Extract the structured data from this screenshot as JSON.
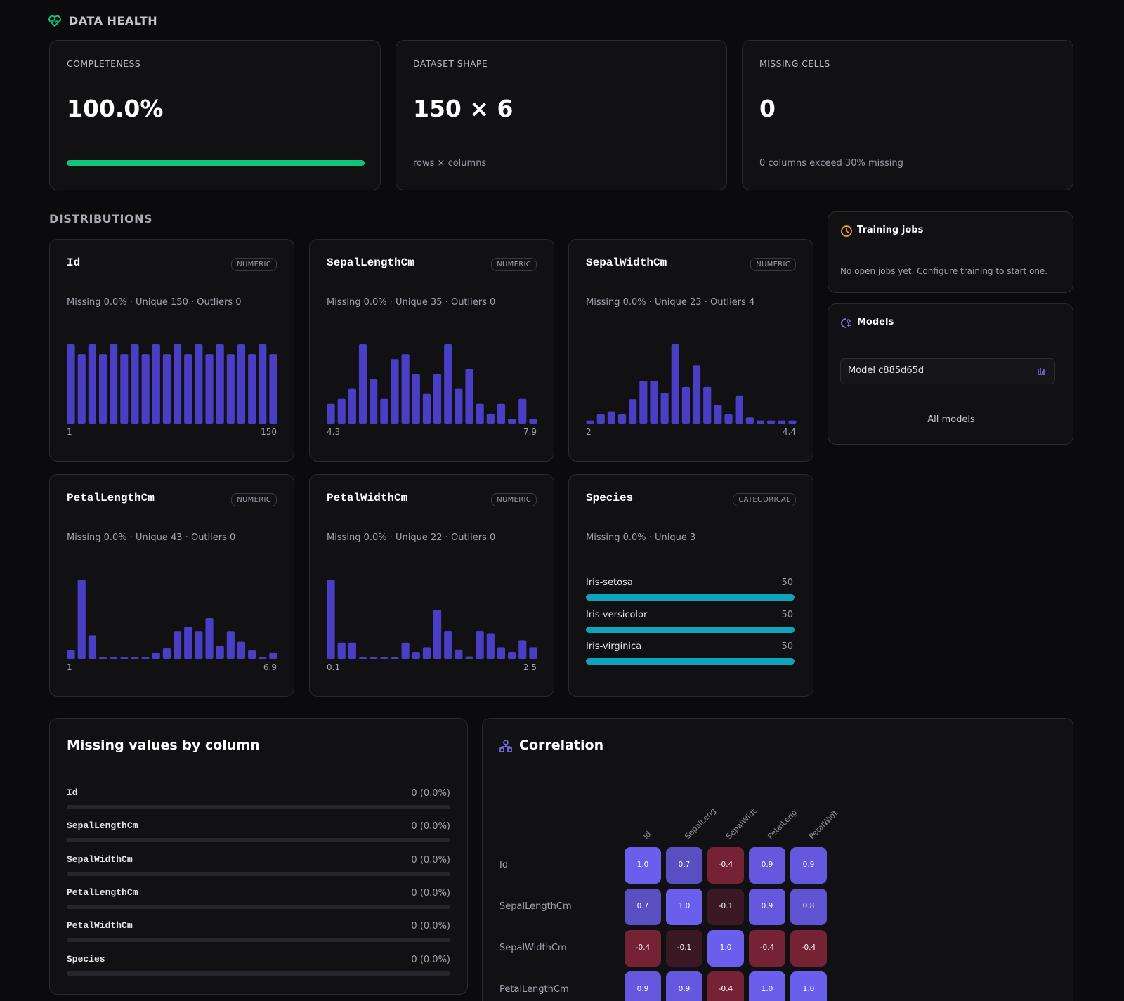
{
  "header": {
    "title": "DATA HEALTH"
  },
  "summary": [
    {
      "label": "COMPLETENESS",
      "value": 100,
      "value_label": "100.0%"
    },
    {
      "label": "DATASET SHAPE",
      "value_label": "150 × 6",
      "note": "rows × columns"
    },
    {
      "label": "MISSING CELLS",
      "value": 0,
      "note": "0 columns exceed 30% missing"
    }
  ],
  "distributions": {
    "title": "DISTRIBUTIONS",
    "columns": [
      {
        "name": "Id",
        "type": "NUMERIC",
        "stats": "Missing 0.0% · Unique 150 · Outliers 0",
        "counts": [
          8,
          7,
          8,
          7,
          8,
          7,
          8,
          7,
          8,
          7,
          8,
          7,
          8,
          7,
          8,
          7,
          8,
          7,
          8,
          7
        ],
        "min_label": "1",
        "max_label": "150"
      },
      {
        "name": "SepalLengthCm",
        "type": "NUMERIC",
        "stats": "Missing 0.0% · Unique 35 · Outliers 0",
        "counts": [
          4,
          5,
          7,
          16,
          9,
          5,
          13,
          14,
          10,
          6,
          10,
          16,
          7,
          11,
          4,
          2,
          4,
          1,
          5,
          1
        ],
        "min_label": "4.3",
        "max_label": "7.9"
      },
      {
        "name": "SepalWidthCm",
        "type": "NUMERIC",
        "stats": "Missing 0.0% · Unique 23 · Outliers 4",
        "counts": [
          1,
          3,
          4,
          3,
          8,
          14,
          14,
          10,
          26,
          12,
          19,
          12,
          6,
          3,
          9,
          2,
          1,
          1,
          1,
          1
        ],
        "min_label": "2",
        "max_label": "4.4"
      },
      {
        "name": "PetalLengthCm",
        "type": "NUMERIC",
        "stats": "Missing 0.0% · Unique 43 · Outliers 0",
        "counts": [
          4,
          37,
          11,
          1,
          0,
          0,
          0,
          1,
          3,
          5,
          13,
          15,
          13,
          19,
          6,
          13,
          8,
          4,
          1,
          3
        ],
        "min_label": "1",
        "max_label": "6.9"
      },
      {
        "name": "PetalWidthCm",
        "type": "NUMERIC",
        "stats": "Missing 0.0% · Unique 22 · Outliers 0",
        "counts": [
          34,
          7,
          7,
          0,
          0,
          0,
          0,
          7,
          3,
          5,
          21,
          12,
          4,
          1,
          12,
          11,
          5,
          3,
          8,
          5
        ],
        "min_label": "0.1",
        "max_label": "2.5"
      },
      {
        "name": "Species",
        "type": "CATEGORICAL",
        "stats": "Missing 0.0% · Unique 3",
        "categories": [
          "Iris-setosa",
          "Iris-versicolor",
          "Iris-virginica"
        ],
        "counts": [
          50,
          50,
          50
        ]
      }
    ]
  },
  "training_jobs": {
    "title": "Training jobs",
    "text": "No open jobs yet. Configure training to start one."
  },
  "models": {
    "title": "Models",
    "items": [
      "Model c885d65d"
    ],
    "link": "All models"
  },
  "missing_values": {
    "title": "Missing values by column",
    "rows": [
      {
        "column": "Id",
        "count": 0,
        "percent": 0,
        "label": "0 (0.0%)"
      },
      {
        "column": "SepalLengthCm",
        "count": 0,
        "percent": 0,
        "label": "0 (0.0%)"
      },
      {
        "column": "SepalWidthCm",
        "count": 0,
        "percent": 0,
        "label": "0 (0.0%)"
      },
      {
        "column": "PetalLengthCm",
        "count": 0,
        "percent": 0,
        "label": "0 (0.0%)"
      },
      {
        "column": "PetalWidthCm",
        "count": 0,
        "percent": 0,
        "label": "0 (0.0%)"
      },
      {
        "column": "Species",
        "count": 0,
        "percent": 0,
        "label": "0 (0.0%)"
      }
    ]
  },
  "correlation": {
    "title": "Correlation",
    "column_labels": [
      "Id",
      "SepalLeng",
      "SepalWidt",
      "PetalLeng",
      "PetalWidt"
    ],
    "row_labels": [
      "Id",
      "SepalLengthCm",
      "SepalWidthCm",
      "PetalLengthCm"
    ],
    "values": [
      [
        1.0,
        0.7,
        -0.4,
        0.9,
        0.9
      ],
      [
        0.7,
        1.0,
        -0.1,
        0.9,
        0.8
      ],
      [
        -0.4,
        -0.1,
        1.0,
        -0.4,
        -0.4
      ],
      [
        0.9,
        0.9,
        -0.4,
        1.0,
        1.0
      ]
    ],
    "value_labels": [
      [
        "1.0",
        "0.7",
        "-0.4",
        "0.9",
        "0.9"
      ],
      [
        "0.7",
        "1.0",
        "-0.1",
        "0.9",
        "0.8"
      ],
      [
        "-0.4",
        "-0.1",
        "1.0",
        "-0.4",
        "-0.4"
      ],
      [
        "0.9",
        "0.9",
        "-0.4",
        "1.0",
        "1.0"
      ]
    ]
  }
}
